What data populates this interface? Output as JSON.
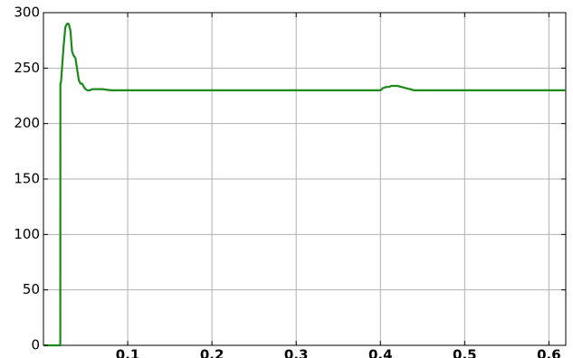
{
  "chart_data": {
    "type": "line",
    "title": "",
    "xlabel": "",
    "ylabel": "",
    "xlim": [
      0,
      0.62
    ],
    "ylim": [
      0,
      300
    ],
    "grid": true,
    "x_ticks": [
      0.1,
      0.2,
      0.3,
      0.4,
      0.5,
      0.6
    ],
    "x_tick_labels": [
      "0.1",
      "0.2",
      "0.3",
      "0.4",
      "0.5",
      "0.6"
    ],
    "y_ticks": [
      0,
      50,
      100,
      150,
      200,
      250,
      300
    ],
    "y_tick_labels": [
      "0",
      "50",
      "100",
      "150",
      "200",
      "250",
      "300"
    ],
    "series": [
      {
        "color": "#1a8a1a",
        "x": [
          0,
          0.02,
          0.0201,
          0.021,
          0.022,
          0.024,
          0.026,
          0.028,
          0.03,
          0.032,
          0.034,
          0.036,
          0.038,
          0.04,
          0.042,
          0.044,
          0.046,
          0.048,
          0.05,
          0.052,
          0.055,
          0.058,
          0.062,
          0.07,
          0.08,
          0.1,
          0.2,
          0.3,
          0.4,
          0.403,
          0.407,
          0.41,
          0.413,
          0.417,
          0.42,
          0.425,
          0.43,
          0.435,
          0.44,
          0.45,
          0.5,
          0.6,
          0.62
        ],
        "y": [
          0,
          0,
          236,
          238,
          250,
          270,
          287,
          290,
          290,
          284,
          265,
          261,
          259,
          249,
          239,
          236,
          236,
          233,
          231,
          230,
          230,
          231,
          231,
          231,
          230,
          230,
          230,
          230,
          230,
          232,
          233,
          233,
          234,
          234,
          234,
          233,
          232,
          231,
          230,
          230,
          230,
          230,
          230
        ]
      }
    ]
  }
}
